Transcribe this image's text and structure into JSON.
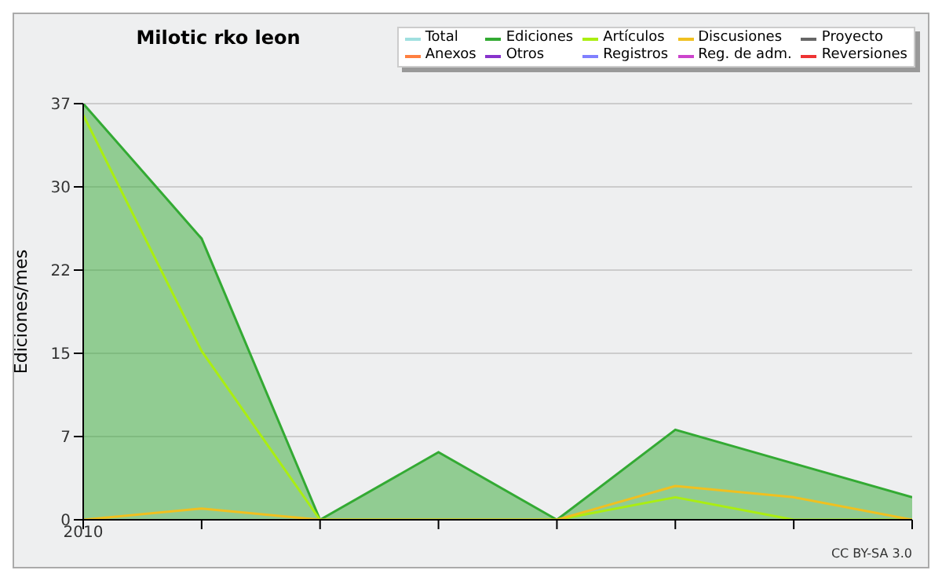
{
  "chart_data": {
    "type": "line",
    "title": "Milotic rko leon",
    "ylabel": "Ediciones/mes",
    "categories": [
      "2010",
      null,
      null,
      null,
      null,
      null,
      null,
      null
    ],
    "series": [
      {
        "name": "Total",
        "color": "#a0e0e0",
        "values": [
          null,
          null,
          null,
          null,
          null,
          null,
          null,
          null
        ]
      },
      {
        "name": "Ediciones",
        "color": "#33aa33",
        "type": "area",
        "values": [
          37,
          25,
          0,
          6,
          0,
          8,
          5,
          2
        ]
      },
      {
        "name": "Artículos",
        "color": "#aaee11",
        "values": [
          36,
          15,
          0,
          0,
          0,
          2,
          0,
          0
        ]
      },
      {
        "name": "Discusiones",
        "color": "#f0c020",
        "values": [
          0,
          1,
          0,
          0,
          0,
          3,
          2,
          0
        ]
      },
      {
        "name": "Proyecto",
        "color": "#666666",
        "values": [
          null,
          null,
          null,
          null,
          null,
          null,
          null,
          null
        ]
      },
      {
        "name": "Anexos",
        "color": "#ff8040",
        "values": [
          null,
          null,
          null,
          null,
          null,
          null,
          null,
          null
        ]
      },
      {
        "name": "Otros",
        "color": "#8833cc",
        "values": [
          null,
          null,
          null,
          null,
          null,
          null,
          null,
          null
        ]
      },
      {
        "name": "Registros",
        "color": "#8080ff",
        "values": [
          null,
          null,
          null,
          null,
          null,
          null,
          null,
          null
        ]
      },
      {
        "name": "Reg. de adm.",
        "color": "#cc44cc",
        "values": [
          null,
          null,
          null,
          null,
          null,
          null,
          null,
          null
        ]
      },
      {
        "name": "Reversiones",
        "color": "#ee3333",
        "values": [
          null,
          null,
          null,
          null,
          null,
          null,
          null,
          null
        ]
      }
    ],
    "ylim": [
      0,
      37
    ],
    "yticks": [
      0,
      {
        "value": 7.4,
        "label": "7"
      },
      {
        "value": 14.8,
        "label": "15"
      },
      {
        "value": 22.2,
        "label": "22"
      },
      {
        "value": 29.6,
        "label": "30"
      },
      37
    ],
    "grid": "y",
    "legend": "top right",
    "annotations": [
      "CC BY-SA 3.0"
    ]
  }
}
